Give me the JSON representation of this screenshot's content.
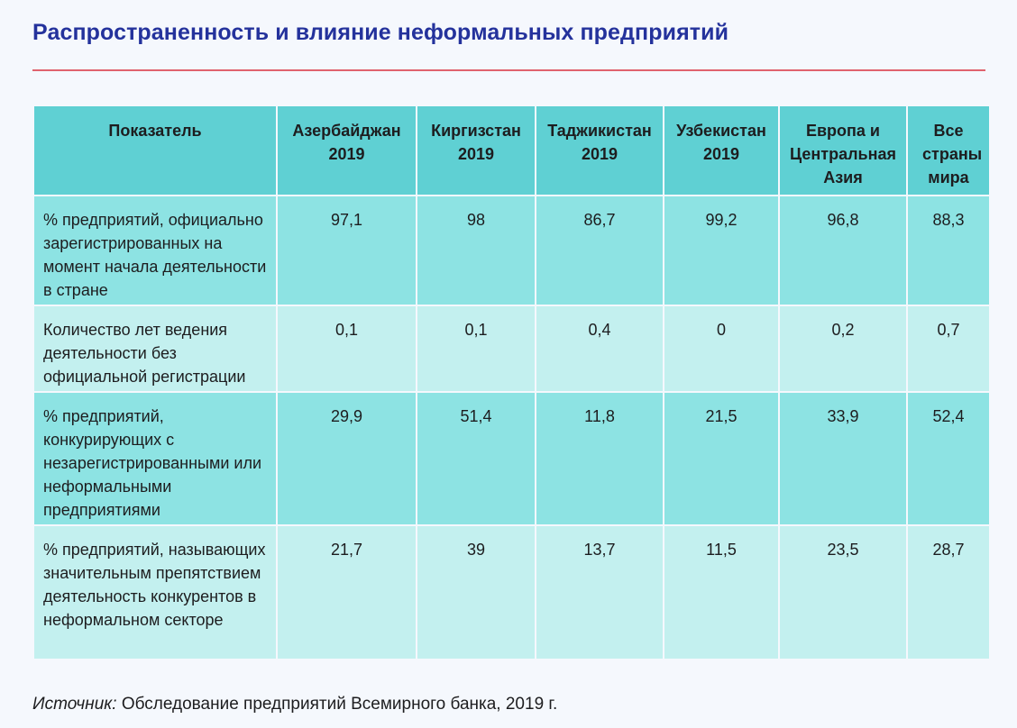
{
  "page": {
    "title": "Распространенность и влияние неформальных предприятий"
  },
  "table": {
    "headers": [
      {
        "key": "indicator",
        "label": "Показатель"
      },
      {
        "key": "az",
        "label": "Азербайджан 2019"
      },
      {
        "key": "kg",
        "label": "Киргизстан 2019"
      },
      {
        "key": "tj",
        "label": "Таджикистан 2019"
      },
      {
        "key": "uz",
        "label": "Узбекистан 2019"
      },
      {
        "key": "eca",
        "label": "Европа и Центральная Азия"
      },
      {
        "key": "world",
        "label": "Все страны мира"
      }
    ],
    "rows": [
      {
        "label": "% предприятий, официально зарегистрированных на момент начала деятельности в стране",
        "values": [
          "97,1",
          "98",
          "86,7",
          "99,2",
          "96,8",
          "88,3"
        ]
      },
      {
        "label": "Количество лет ведения деятельности без официальной регистрации",
        "values": [
          "0,1",
          "0,1",
          "0,4",
          "0",
          "0,2",
          "0,7"
        ]
      },
      {
        "label": "% предприятий, конкурирующих с незарегистрированными или неформальными предприятиями",
        "values": [
          "29,9",
          "51,4",
          "11,8",
          "21,5",
          "33,9",
          "52,4"
        ]
      },
      {
        "label": "% предприятий, называющих значительным препятствием деятельность конкурентов в неформальном секторе",
        "values": [
          "21,7",
          "39",
          "13,7",
          "11,5",
          "23,5",
          "28,7"
        ]
      }
    ]
  },
  "source": {
    "label": "Источник:",
    "text": "Обследование предприятий Всемирного банка, 2019 г."
  },
  "colors": {
    "title": "#24329c",
    "rule": "#e0636e",
    "header_bg": "#5fd0d3",
    "row_dark": "#8de3e3",
    "row_light": "#c3f0ef",
    "page_bg": "#f5f8fd"
  }
}
